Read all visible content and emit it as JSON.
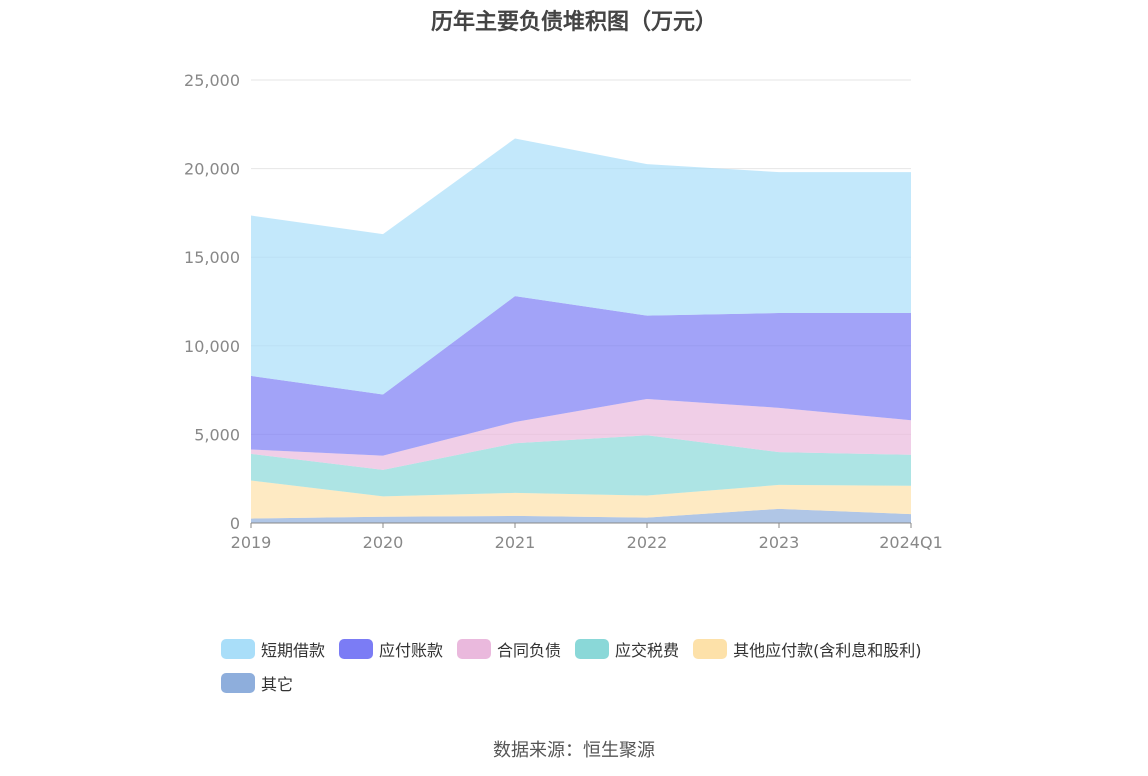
{
  "chart_data": {
    "type": "area",
    "stacked": true,
    "title": "历年主要负债堆积图（万元）",
    "categories": [
      "2019",
      "2020",
      "2021",
      "2022",
      "2023",
      "2024Q1"
    ],
    "ylim": [
      0,
      25000
    ],
    "yticks": [
      "0",
      "5,000",
      "10,000",
      "15,000",
      "20,000",
      "25,000"
    ],
    "ytick_values": [
      0,
      5000,
      10000,
      15000,
      20000,
      25000
    ],
    "grid": true,
    "legend_position": "bottom",
    "series": [
      {
        "name": "其它",
        "color": "#8eaedc",
        "values": [
          250,
          350,
          400,
          300,
          800,
          500
        ]
      },
      {
        "name": "其他应付款(含利息和股利)",
        "color": "#fde1a9",
        "values": [
          2150,
          1150,
          1300,
          1250,
          1350,
          1600
        ]
      },
      {
        "name": "应交税费",
        "color": "#8ad8d8",
        "values": [
          1500,
          1500,
          2800,
          3400,
          1850,
          1750
        ]
      },
      {
        "name": "合同负债",
        "color": "#eab9dd",
        "values": [
          250,
          800,
          1200,
          2050,
          2500,
          1950
        ]
      },
      {
        "name": "应付账款",
        "color": "#7b7cf5",
        "values": [
          4150,
          3450,
          7100,
          4700,
          5350,
          6050
        ]
      },
      {
        "name": "短期借款",
        "color": "#a9def9",
        "values": [
          9050,
          9050,
          8900,
          8550,
          7950,
          7950
        ]
      }
    ],
    "legend_order": [
      "短期借款",
      "应付账款",
      "合同负债",
      "应交税费",
      "其他应付款(含利息和股利)",
      "其它"
    ]
  },
  "source": "数据来源：恒生聚源"
}
